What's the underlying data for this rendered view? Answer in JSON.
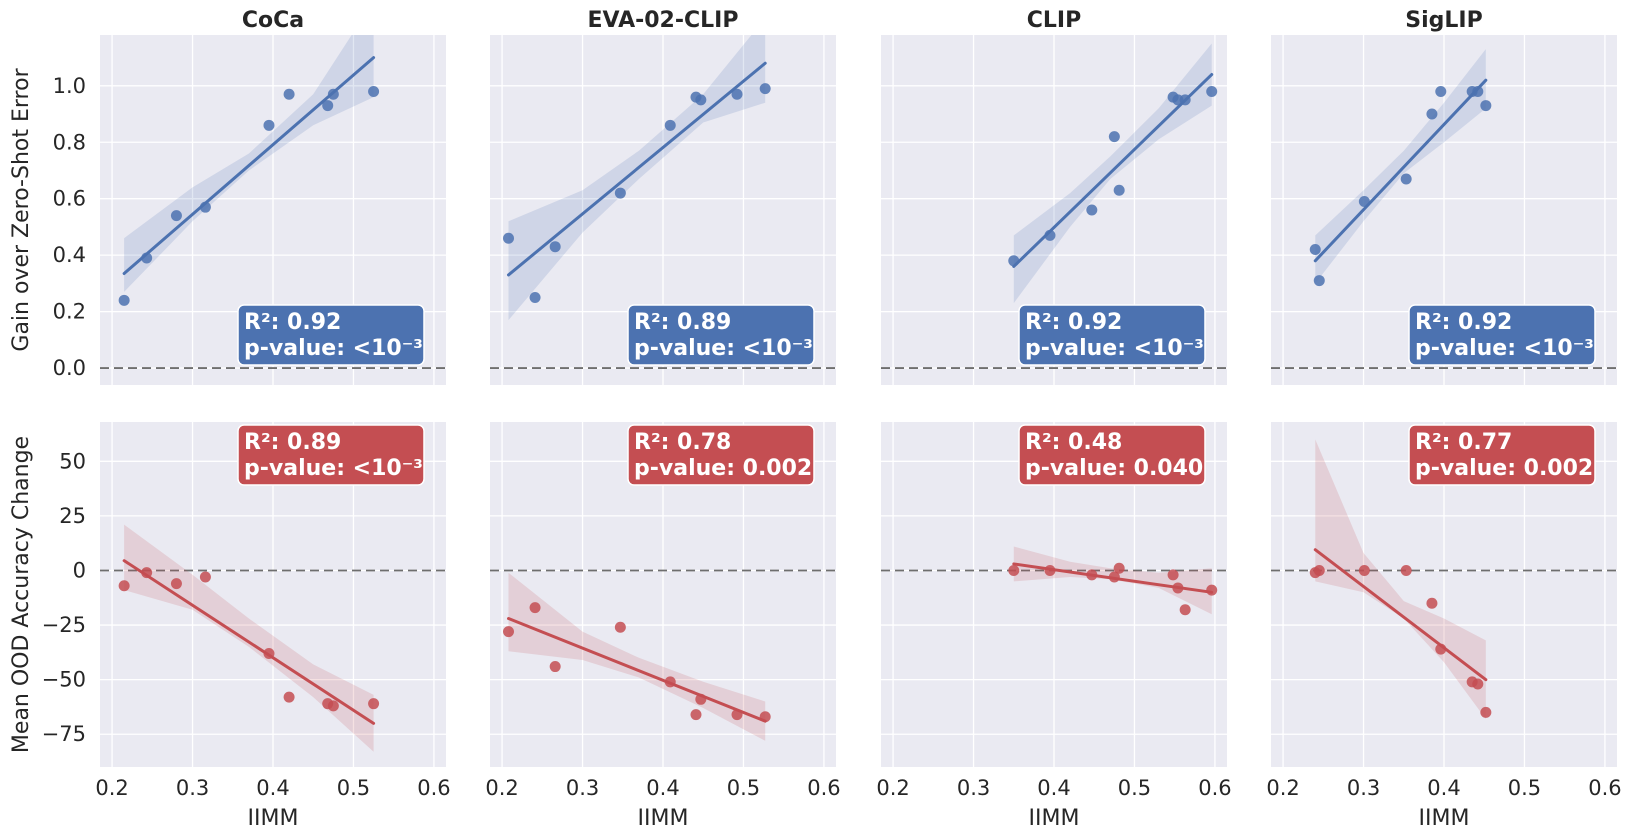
{
  "chart_data": {
    "type": "scatter",
    "xlabel": "IIMM",
    "xlim": [
      0.185,
      0.615
    ],
    "xticks": [
      "0.2",
      "0.3",
      "0.4",
      "0.5",
      "0.6"
    ],
    "xtick_values": [
      0.2,
      0.3,
      0.4,
      0.5,
      0.6
    ],
    "grid": true,
    "panels": [
      "CoCa",
      "EVA-02-CLIP",
      "CLIP",
      "SigLIP"
    ],
    "rows": [
      {
        "ylabel": "Gain over Zero-Shot Error",
        "color": "#4c72b0",
        "ylim": [
          -0.06,
          1.18
        ],
        "yticks": [
          "0.0",
          "0.2",
          "0.4",
          "0.6",
          "0.8",
          "1.0"
        ],
        "ytick_values": [
          0.0,
          0.2,
          0.4,
          0.6,
          0.8,
          1.0
        ],
        "annotation_corner": "bottom-right",
        "series": [
          {
            "panel": "CoCa",
            "x": [
              0.215,
              0.243,
              0.28,
              0.316,
              0.395,
              0.42,
              0.468,
              0.475,
              0.525
            ],
            "y": [
              0.24,
              0.39,
              0.54,
              0.57,
              0.86,
              0.97,
              0.93,
              0.97,
              0.98
            ],
            "fit": [
              0.335,
              1.1
            ],
            "ci": [
              [
                0.215,
                0.27,
                0.46
              ],
              [
                0.3,
                0.52,
                0.64
              ],
              [
                0.37,
                0.7,
                0.76
              ],
              [
                0.45,
                0.86,
                0.97
              ],
              [
                0.525,
                0.96,
                1.3
              ]
            ],
            "r2_text": "R²: 0.92",
            "p_text": "p-value: <10⁻³"
          },
          {
            "panel": "EVA-02-CLIP",
            "x": [
              0.208,
              0.241,
              0.266,
              0.347,
              0.409,
              0.441,
              0.447,
              0.492,
              0.527
            ],
            "y": [
              0.46,
              0.25,
              0.43,
              0.62,
              0.86,
              0.96,
              0.95,
              0.97,
              0.99
            ],
            "fit": [
              0.33,
              1.08
            ],
            "ci": [
              [
                0.208,
                0.17,
                0.52
              ],
              [
                0.3,
                0.48,
                0.63
              ],
              [
                0.37,
                0.67,
                0.77
              ],
              [
                0.45,
                0.87,
                0.97
              ],
              [
                0.527,
                0.94,
                1.24
              ]
            ],
            "r2_text": "R²: 0.89",
            "p_text": "p-value: <10⁻³"
          },
          {
            "panel": "CLIP",
            "x": [
              0.35,
              0.395,
              0.447,
              0.475,
              0.481,
              0.548,
              0.554,
              0.563,
              0.596
            ],
            "y": [
              0.38,
              0.47,
              0.56,
              0.82,
              0.63,
              0.96,
              0.95,
              0.95,
              0.98
            ],
            "fit": [
              0.36,
              1.04
            ],
            "ci": [
              [
                0.35,
                0.23,
                0.47
              ],
              [
                0.42,
                0.5,
                0.62
              ],
              [
                0.47,
                0.67,
                0.75
              ],
              [
                0.53,
                0.81,
                0.92
              ],
              [
                0.596,
                0.93,
                1.15
              ]
            ],
            "r2_text": "R²: 0.92",
            "p_text": "p-value: <10⁻³"
          },
          {
            "panel": "SigLIP",
            "x": [
              0.24,
              0.245,
              0.301,
              0.353,
              0.385,
              0.396,
              0.435,
              0.442,
              0.452
            ],
            "y": [
              0.42,
              0.31,
              0.59,
              0.67,
              0.9,
              0.98,
              0.98,
              0.98,
              0.93
            ],
            "fit": [
              0.38,
              1.02
            ],
            "ci": [
              [
                0.24,
                0.3,
                0.47
              ],
              [
                0.3,
                0.52,
                0.63
              ],
              [
                0.35,
                0.69,
                0.77
              ],
              [
                0.4,
                0.8,
                0.94
              ],
              [
                0.452,
                0.92,
                1.13
              ]
            ],
            "r2_text": "R²: 0.92",
            "p_text": "p-value: <10⁻³"
          }
        ]
      },
      {
        "ylabel": "Mean OOD Accuracy Change",
        "color": "#c44e52",
        "ylim": [
          -90,
          68
        ],
        "yticks": [
          "−75",
          "−50",
          "−25",
          "0",
          "25",
          "50"
        ],
        "ytick_values": [
          -75,
          -50,
          -25,
          0,
          25,
          50
        ],
        "annotation_corner": "top-right",
        "series": [
          {
            "panel": "CoCa",
            "x": [
              0.215,
              0.243,
              0.28,
              0.316,
              0.395,
              0.42,
              0.468,
              0.475,
              0.525
            ],
            "y": [
              -7,
              -1,
              -6,
              -3,
              -38,
              -58,
              -61,
              -62,
              -61
            ],
            "fit": [
              4.5,
              -70
            ],
            "ci": [
              [
                0.215,
                -9,
                21
              ],
              [
                0.3,
                -18,
                -2
              ],
              [
                0.37,
                -35,
                -22
              ],
              [
                0.45,
                -58,
                -43
              ],
              [
                0.525,
                -83,
                -57
              ]
            ],
            "r2_text": "R²: 0.89",
            "p_text": "p-value: <10⁻³"
          },
          {
            "panel": "EVA-02-CLIP",
            "x": [
              0.208,
              0.241,
              0.266,
              0.347,
              0.409,
              0.441,
              0.447,
              0.492,
              0.527
            ],
            "y": [
              -28,
              -17,
              -44,
              -26,
              -51,
              -66,
              -59,
              -66,
              -67
            ],
            "fit": [
              -22,
              -69
            ],
            "ci": [
              [
                0.208,
                -37,
                -1
              ],
              [
                0.3,
                -41,
                -28
              ],
              [
                0.37,
                -49,
                -40
              ],
              [
                0.45,
                -63,
                -51
              ],
              [
                0.527,
                -78,
                -60
              ]
            ],
            "r2_text": "R²: 0.78",
            "p_text": "p-value: 0.002"
          },
          {
            "panel": "CLIP",
            "x": [
              0.35,
              0.395,
              0.447,
              0.475,
              0.481,
              0.548,
              0.554,
              0.563,
              0.596
            ],
            "y": [
              0,
              0,
              -2,
              -3,
              1,
              -2,
              -8,
              -18,
              -9
            ],
            "fit": [
              3,
              -10
            ],
            "ci": [
              [
                0.35,
                -5,
                11
              ],
              [
                0.42,
                -3,
                4
              ],
              [
                0.47,
                -4,
                1
              ],
              [
                0.53,
                -8,
                -1
              ],
              [
                0.596,
                -20,
                1
              ]
            ],
            "r2_text": "R²: 0.48",
            "p_text": "p-value: 0.040"
          },
          {
            "panel": "SigLIP",
            "x": [
              0.24,
              0.245,
              0.301,
              0.353,
              0.385,
              0.396,
              0.435,
              0.442,
              0.452
            ],
            "y": [
              -1,
              0,
              0,
              0,
              -15,
              -36,
              -51,
              -52,
              -65
            ],
            "fit": [
              9.5,
              -50
            ],
            "ci": [
              [
                0.24,
                -5,
                60
              ],
              [
                0.3,
                -10,
                8
              ],
              [
                0.35,
                -22,
                -14
              ],
              [
                0.4,
                -42,
                -22
              ],
              [
                0.452,
                -68,
                -32
              ]
            ],
            "r2_text": "R²: 0.77",
            "p_text": "p-value: 0.002"
          }
        ]
      }
    ]
  }
}
